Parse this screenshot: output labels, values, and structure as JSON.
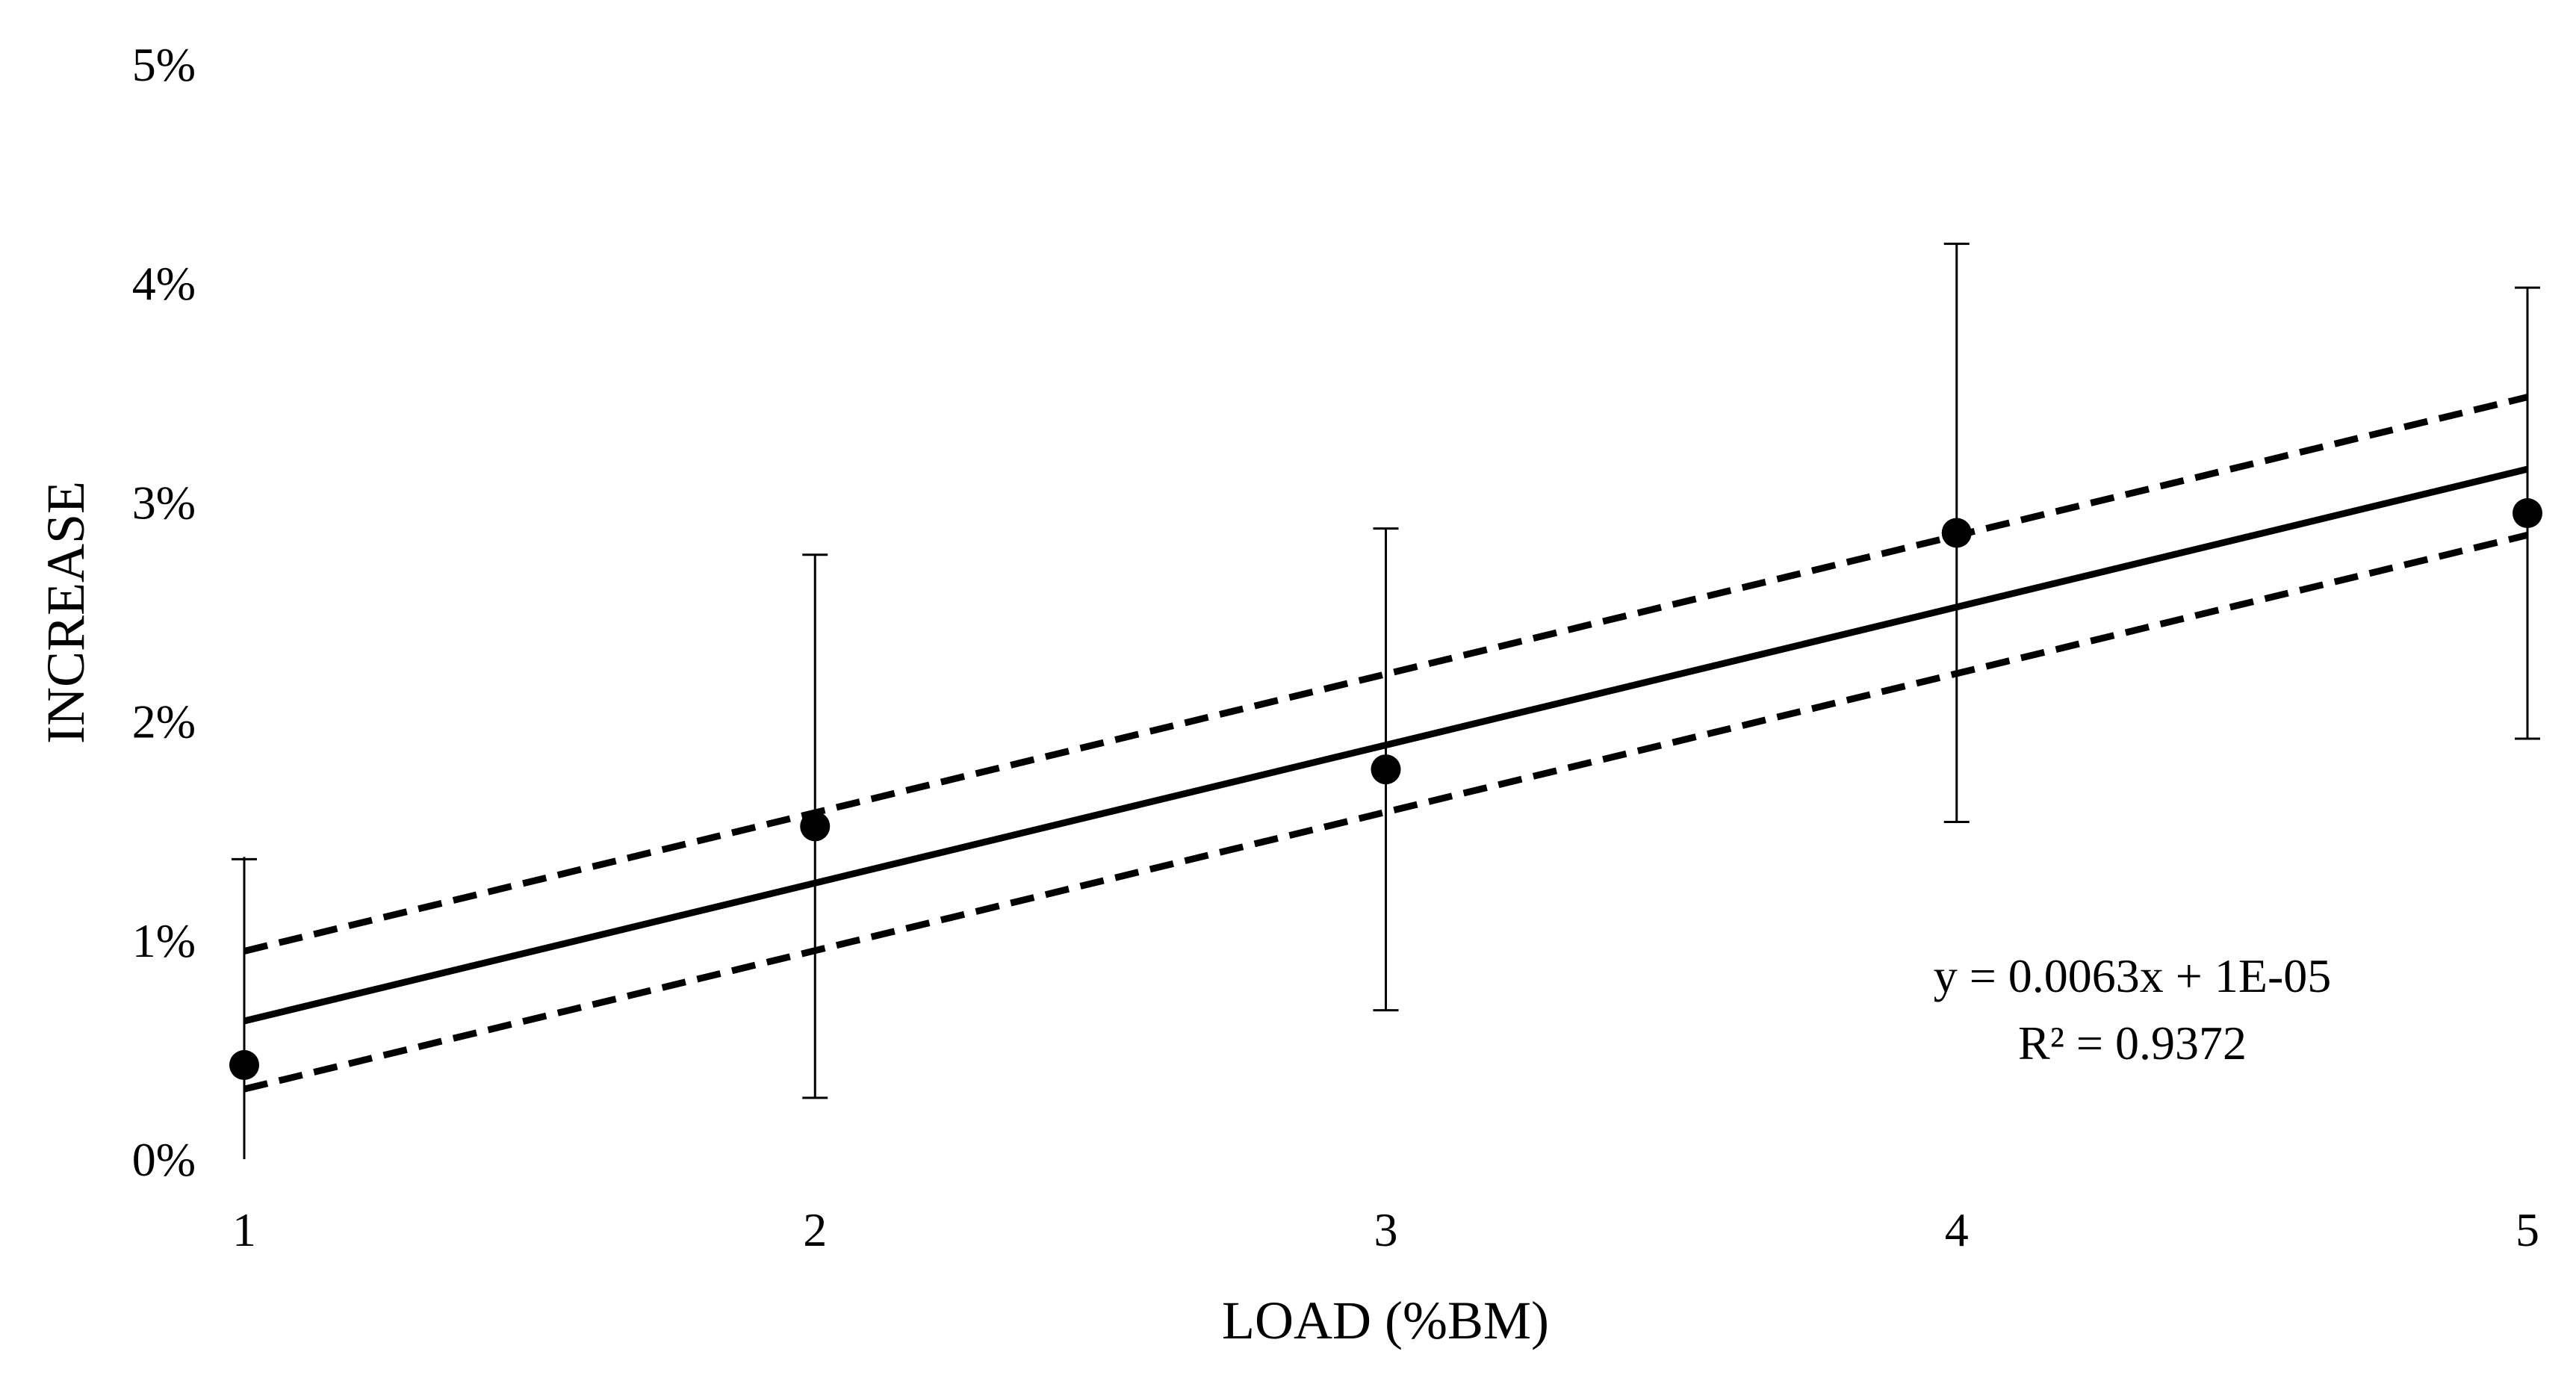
{
  "chart_data": {
    "type": "scatter",
    "xlabel": "LOAD (%BM)",
    "ylabel": "INCREASE",
    "x_ticks": [
      "1",
      "2",
      "3",
      "4",
      "5"
    ],
    "y_ticks": [
      "0%",
      "1%",
      "2%",
      "3%",
      "4%",
      "5%"
    ],
    "xlim": [
      1,
      5
    ],
    "ylim": [
      0,
      0.05
    ],
    "grid": false,
    "series": [
      {
        "type": "scatter",
        "x": [
          1,
          2,
          3,
          4,
          5
        ],
        "y": [
          0.0043,
          0.0152,
          0.0178,
          0.0286,
          0.0295
        ],
        "error": [
          0.0094,
          0.0124,
          0.011,
          0.0132,
          0.0103
        ]
      }
    ],
    "trendline": {
      "slope": 0.0063,
      "intercept": 1e-05,
      "style": "solid"
    },
    "confidence_band": {
      "style": "dashed",
      "upper": {
        "x": [
          1,
          5
        ],
        "y": [
          0.0095,
          0.0348
        ]
      },
      "lower": {
        "x": [
          1,
          5
        ],
        "y": [
          0.0032,
          0.0285
        ]
      }
    },
    "annotations": [
      "y = 0.0063x + 1E-05",
      "R² = 0.9372"
    ]
  }
}
